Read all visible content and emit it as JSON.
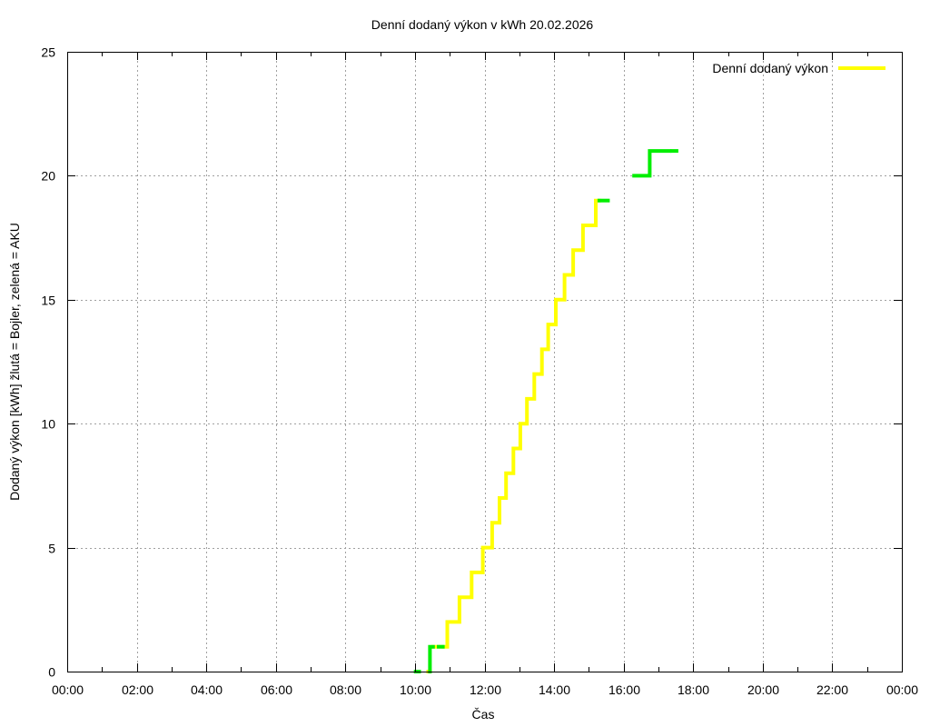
{
  "chart_data": {
    "type": "line",
    "subtype": "step",
    "title": "Denní dodaný výkon v kWh 20.02.2026",
    "xlabel": "Čas",
    "ylabel": "Dodaný výkon [kWh]  žlutá = Bojler, zelená = AKU",
    "xlim_hours": [
      0,
      24
    ],
    "ylim": [
      0,
      25
    ],
    "x_ticks": [
      "00:00",
      "02:00",
      "04:00",
      "06:00",
      "08:00",
      "10:00",
      "12:00",
      "14:00",
      "16:00",
      "18:00",
      "20:00",
      "22:00",
      "00:00"
    ],
    "y_ticks": [
      0,
      5,
      10,
      15,
      20,
      25
    ],
    "grid": true,
    "legend": {
      "position": "top-right",
      "entries": [
        {
          "label": "Denní dodaný výkon",
          "color": "#ffff00"
        }
      ]
    },
    "colors": {
      "bojler": "#ffff00",
      "aku": "#00ee00",
      "grid": "#a0a0a0",
      "axis": "#000000"
    },
    "series": [
      {
        "name": "Bojler (žlutá)",
        "color": "#ffff00",
        "segments": [
          [
            [
              10.38,
              0
            ],
            [
              10.43,
              0
            ]
          ],
          [
            [
              10.52,
              1
            ],
            [
              10.68,
              1
            ]
          ],
          [
            [
              10.8,
              1
            ],
            [
              10.93,
              1
            ],
            [
              10.93,
              2
            ],
            [
              11.28,
              2
            ],
            [
              11.28,
              3
            ],
            [
              11.63,
              3
            ],
            [
              11.63,
              4
            ],
            [
              11.95,
              4
            ],
            [
              11.95,
              5
            ],
            [
              12.22,
              5
            ],
            [
              12.22,
              6
            ],
            [
              12.43,
              6
            ],
            [
              12.43,
              7
            ],
            [
              12.62,
              7
            ],
            [
              12.62,
              8
            ],
            [
              12.83,
              8
            ],
            [
              12.83,
              9
            ],
            [
              13.03,
              9
            ],
            [
              13.03,
              10
            ],
            [
              13.22,
              10
            ],
            [
              13.22,
              11
            ],
            [
              13.43,
              11
            ],
            [
              13.43,
              12
            ],
            [
              13.65,
              12
            ],
            [
              13.65,
              13
            ],
            [
              13.83,
              13
            ],
            [
              13.83,
              14
            ],
            [
              14.05,
              14
            ],
            [
              14.05,
              15
            ],
            [
              14.3,
              15
            ],
            [
              14.3,
              16
            ],
            [
              14.55,
              16
            ],
            [
              14.55,
              17
            ],
            [
              14.83,
              17
            ],
            [
              14.83,
              18
            ],
            [
              15.2,
              18
            ],
            [
              15.2,
              19
            ],
            [
              15.3,
              19
            ]
          ]
        ]
      },
      {
        "name": "AKU (zelená)",
        "color": "#00ee00",
        "segments": [
          [
            [
              10.02,
              0
            ],
            [
              10.12,
              0
            ]
          ],
          [
            [
              10.43,
              0
            ],
            [
              10.43,
              1
            ],
            [
              10.52,
              1
            ]
          ],
          [
            [
              10.68,
              1
            ],
            [
              10.8,
              1
            ]
          ],
          [
            [
              15.3,
              19
            ],
            [
              15.55,
              19
            ]
          ],
          [
            [
              16.3,
              20
            ],
            [
              16.75,
              20
            ],
            [
              16.75,
              21
            ],
            [
              17.32,
              21
            ]
          ],
          [
            [
              17.4,
              21
            ],
            [
              17.52,
              21
            ]
          ]
        ]
      }
    ]
  }
}
